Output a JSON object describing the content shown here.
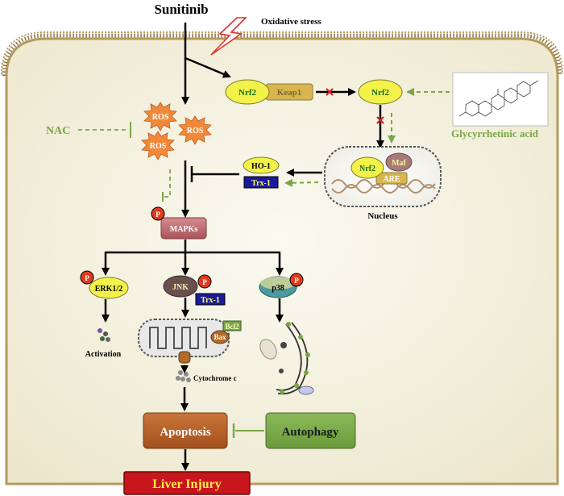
{
  "labels": {
    "drug": "Sunitinib",
    "oxidative_stress": "Oxidative stress",
    "nrf2_complex": "Nrf2",
    "keap1": "Keap1",
    "nrf2_free": "Nrf2",
    "glycyrrhetinic_acid": "Glycyrrhetinic acid",
    "nac": "NAC",
    "ros": [
      "ROS",
      "ROS",
      "ROS"
    ],
    "ho1": "HO-1",
    "trx1_nucleus": "Trx-1",
    "nucleus_nrf2": "Nrf2",
    "maf": "Maf",
    "are": "ARE",
    "nucleus": "Nucleus",
    "mapks": "MAPKs",
    "erk": "ERK1/2",
    "jnk": "JNK",
    "trx1_jnk": "Trx-1",
    "p38": "p38",
    "phospho": "P",
    "bcl2": "Bcl2",
    "bax": "Bax",
    "activation": "Activation",
    "cytochrome": "Cytochrome c",
    "apoptosis": "Apoptosis",
    "autophagy": "Autophagy",
    "liver_injury": "Liver Injury"
  },
  "colors": {
    "cell_fill": "#f3f0df",
    "membrane": "#b59a5e",
    "arrow": "#000000",
    "green_dashed": "#7aa647",
    "red_x": "#d42020",
    "nrf2_fill": "#f2f24a",
    "keap1_fill": "#d8b54e",
    "ros_fill": "#f08a3a",
    "mapks_fill": "#c06a70",
    "phospho_fill": "#e03a1e",
    "trx_fill": "#1b1b9a",
    "trx_text": "#ffff66",
    "apoptosis_fill": "#b8602a",
    "autophagy_fill": "#7aa647",
    "injury_fill": "#c8161c",
    "injury_text": "#ffee44",
    "p38_fill": "#4a9aa0",
    "jnk_fill": "#6a4f4f"
  }
}
